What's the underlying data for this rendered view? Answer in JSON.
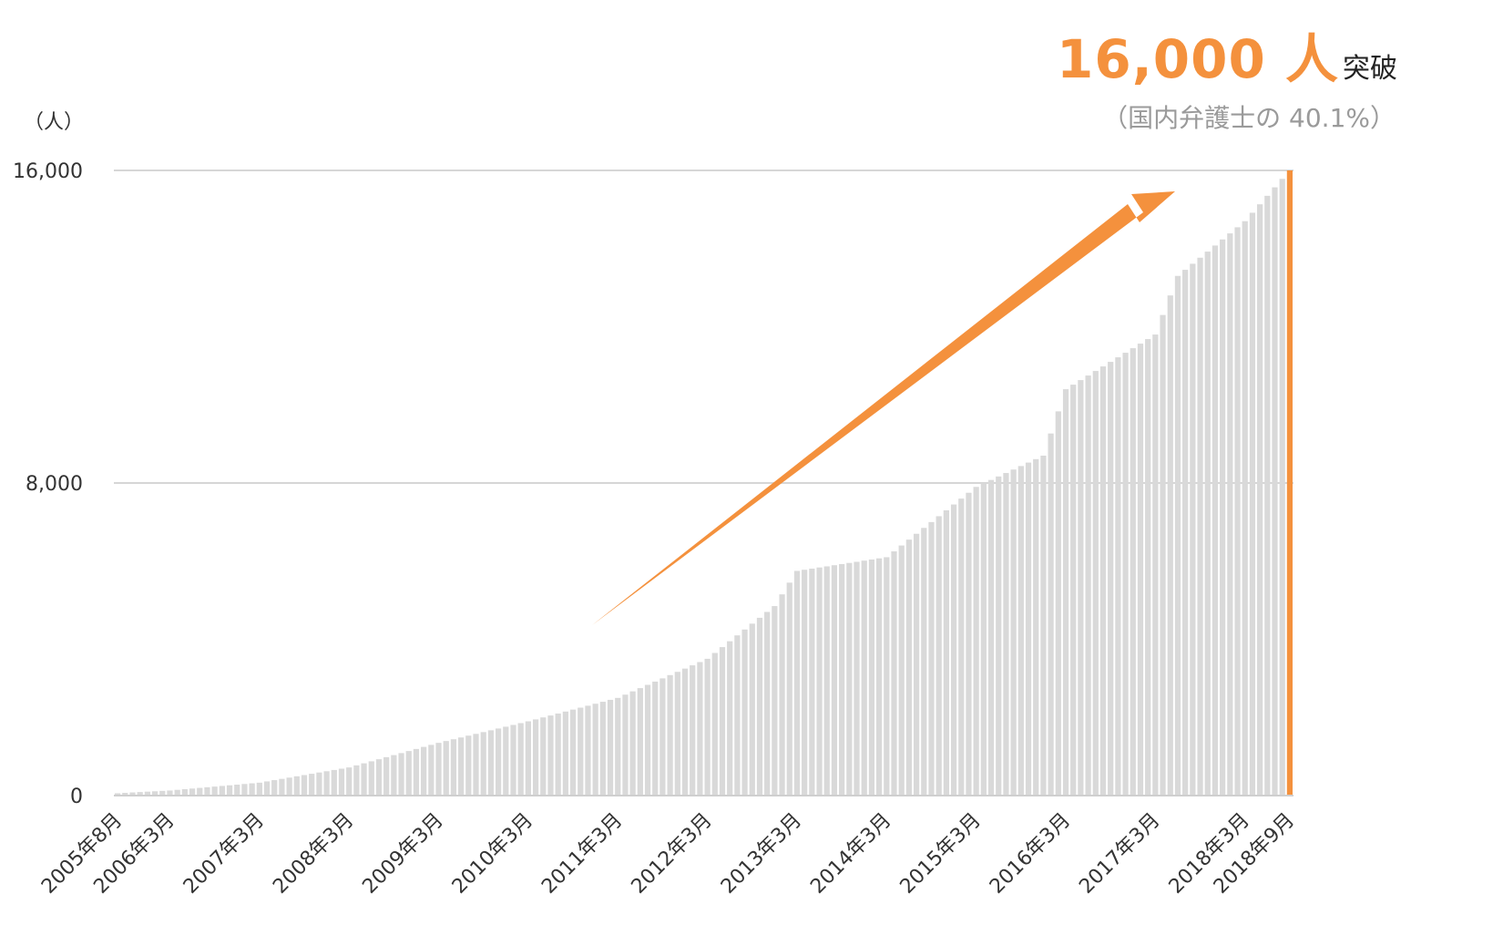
{
  "headline": {
    "value": "16,000 人",
    "suffix": "突破"
  },
  "subtitle": "（国内弁護士の 40.1%）",
  "colors": {
    "bar": "#d9d9d9",
    "highlight": "#f4913d",
    "accent": "#f4913d",
    "grid": "#d6d6d6",
    "text": "#333333"
  },
  "chart_data": {
    "type": "bar",
    "y_unit_label": "（人）",
    "ylim": [
      0,
      16000
    ],
    "yticks": [
      0,
      8000,
      16000
    ],
    "ytick_labels": [
      "0",
      "8,000",
      "16,000"
    ],
    "x_start": "2005-08",
    "x_end": "2018-09",
    "xtick_labels": [
      {
        "month": "2005-08",
        "label": "2005年8月"
      },
      {
        "month": "2006-03",
        "label": "2006年3月"
      },
      {
        "month": "2007-03",
        "label": "2007年3月"
      },
      {
        "month": "2008-03",
        "label": "2008年3月"
      },
      {
        "month": "2009-03",
        "label": "2009年3月"
      },
      {
        "month": "2010-03",
        "label": "2010年3月"
      },
      {
        "month": "2011-03",
        "label": "2011年3月"
      },
      {
        "month": "2012-03",
        "label": "2012年3月"
      },
      {
        "month": "2013-03",
        "label": "2013年3月"
      },
      {
        "month": "2014-03",
        "label": "2014年3月"
      },
      {
        "month": "2015-03",
        "label": "2015年3月"
      },
      {
        "month": "2016-03",
        "label": "2016年3月"
      },
      {
        "month": "2017-03",
        "label": "2017年3月"
      },
      {
        "month": "2018-03",
        "label": "2018年3月"
      },
      {
        "month": "2018-09",
        "label": "2018年9月"
      }
    ],
    "highlight_month": "2018-09",
    "grid": true,
    "annotation": "upward trend arrow",
    "anchors": [
      {
        "month": "2005-08",
        "value": 60
      },
      {
        "month": "2006-03",
        "value": 130
      },
      {
        "month": "2007-03",
        "value": 330
      },
      {
        "month": "2008-03",
        "value": 720
      },
      {
        "month": "2009-03",
        "value": 1350
      },
      {
        "month": "2010-03",
        "value": 1900
      },
      {
        "month": "2011-03",
        "value": 2500
      },
      {
        "month": "2012-03",
        "value": 3500
      },
      {
        "month": "2012-12",
        "value": 4850
      },
      {
        "month": "2013-03",
        "value": 5750
      },
      {
        "month": "2014-03",
        "value": 6100
      },
      {
        "month": "2015-03",
        "value": 7900
      },
      {
        "month": "2015-12",
        "value": 8700
      },
      {
        "month": "2016-03",
        "value": 10400
      },
      {
        "month": "2017-03",
        "value": 11800
      },
      {
        "month": "2017-06",
        "value": 13300
      },
      {
        "month": "2018-03",
        "value": 14700
      },
      {
        "month": "2018-09",
        "value": 16000
      }
    ]
  }
}
